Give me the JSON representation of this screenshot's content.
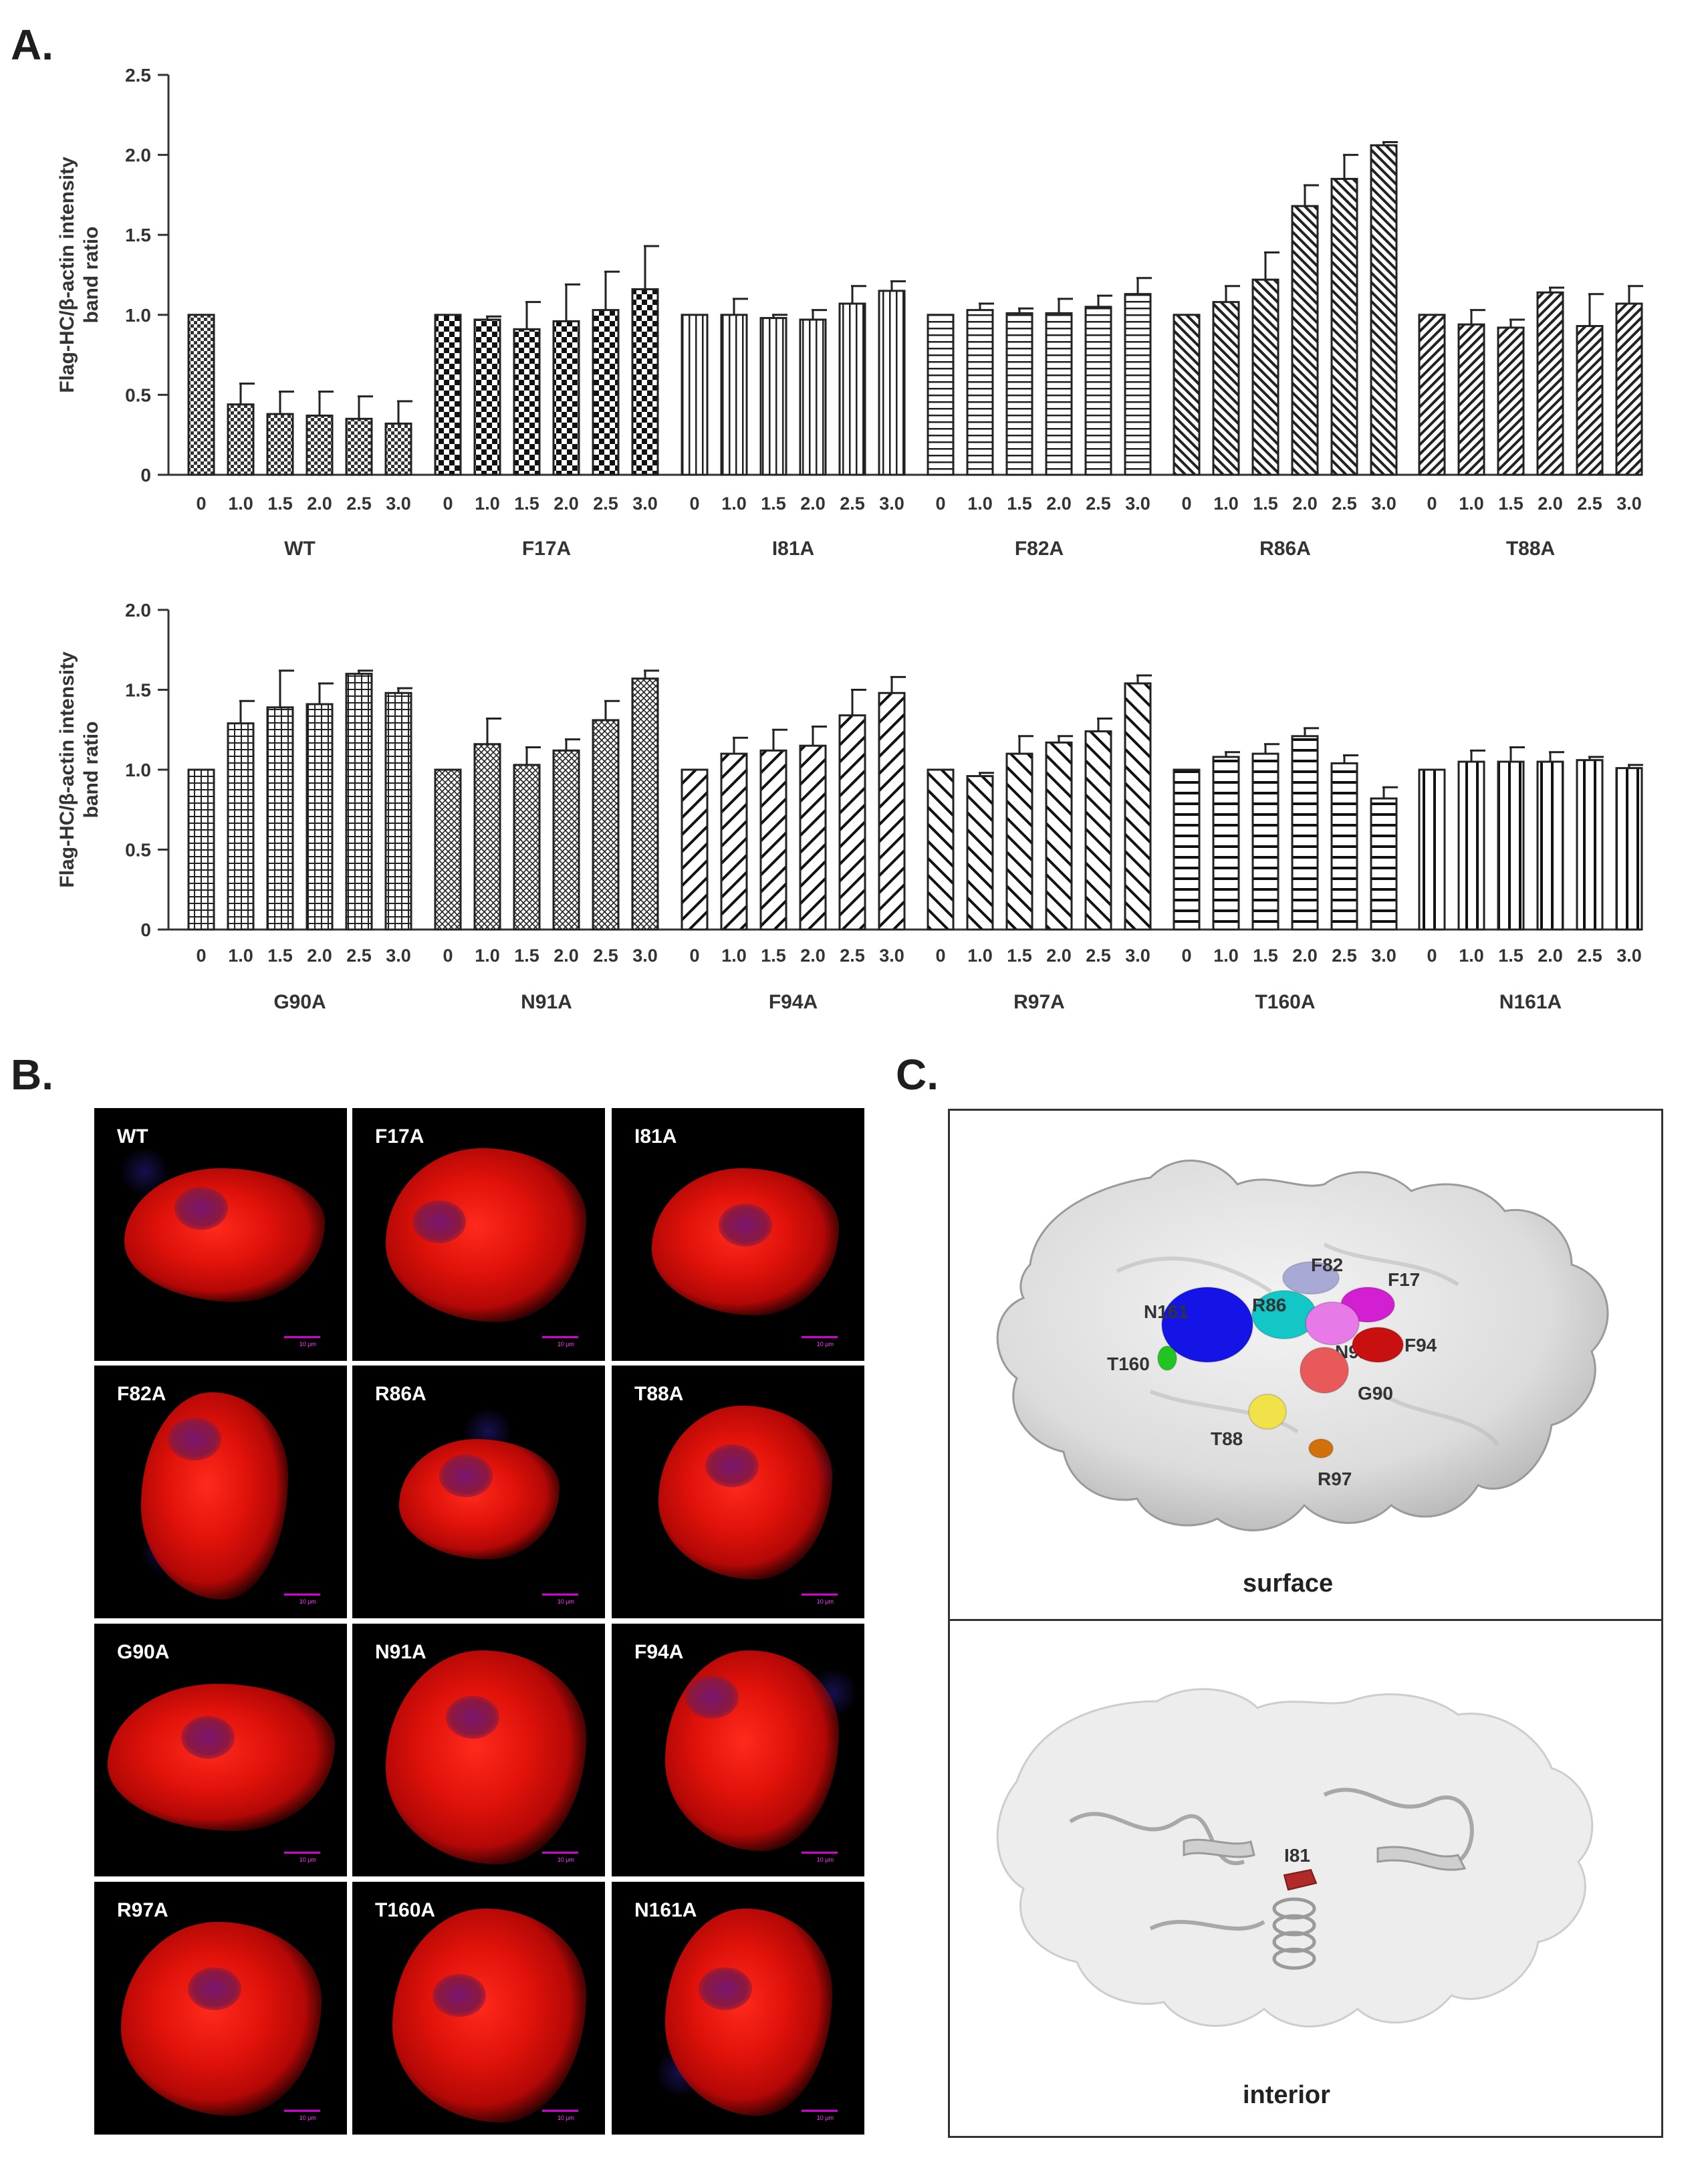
{
  "panels": {
    "a": "A.",
    "b": "B.",
    "c": "C."
  },
  "chart_data": [
    {
      "type": "bar",
      "ylabel": "Flag-HC/β-actin intensity band ratio",
      "ylim": [
        0,
        2.5
      ],
      "yticks": [
        "0",
        "0.5",
        "1.0",
        "1.5",
        "2.0",
        "2.5"
      ],
      "categories": [
        "0",
        "1.0",
        "1.5",
        "2.0",
        "2.5",
        "3.0"
      ],
      "series": [
        {
          "name": "WT",
          "pattern": "check-dense",
          "values": [
            1.0,
            0.44,
            0.38,
            0.37,
            0.35,
            0.32
          ],
          "errors": [
            0,
            0.13,
            0.14,
            0.15,
            0.14,
            0.14
          ]
        },
        {
          "name": "F17A",
          "pattern": "checker",
          "values": [
            1.0,
            0.97,
            0.91,
            0.96,
            1.03,
            1.16
          ],
          "errors": [
            0,
            0.02,
            0.17,
            0.23,
            0.24,
            0.27
          ]
        },
        {
          "name": "I81A",
          "pattern": "vertical",
          "values": [
            1.0,
            1.0,
            0.98,
            0.97,
            1.07,
            1.15
          ],
          "errors": [
            0,
            0.1,
            0.02,
            0.06,
            0.11,
            0.06
          ]
        },
        {
          "name": "F82A",
          "pattern": "horizontal",
          "values": [
            1.0,
            1.03,
            1.01,
            1.01,
            1.05,
            1.13
          ],
          "errors": [
            0,
            0.04,
            0.03,
            0.09,
            0.07,
            0.1
          ]
        },
        {
          "name": "R86A",
          "pattern": "diag-up",
          "values": [
            1.0,
            1.08,
            1.22,
            1.68,
            1.85,
            2.06
          ],
          "errors": [
            0,
            0.1,
            0.17,
            0.13,
            0.15,
            0.02
          ]
        },
        {
          "name": "T88A",
          "pattern": "diag-down",
          "values": [
            1.0,
            0.94,
            0.92,
            1.14,
            0.93,
            1.07
          ],
          "errors": [
            0,
            0.09,
            0.05,
            0.03,
            0.2,
            0.11
          ]
        }
      ]
    },
    {
      "type": "bar",
      "ylabel": "Flag-HC/β-actin intensity band ratio",
      "ylim": [
        0,
        2.0
      ],
      "yticks": [
        "0",
        "0.5",
        "1.0",
        "1.5",
        "2.0"
      ],
      "categories": [
        "0",
        "1.0",
        "1.5",
        "2.0",
        "2.5",
        "3.0"
      ],
      "series": [
        {
          "name": "G90A",
          "pattern": "grid",
          "values": [
            1.0,
            1.29,
            1.39,
            1.41,
            1.6,
            1.48
          ],
          "errors": [
            0,
            0.14,
            0.23,
            0.13,
            0.02,
            0.03
          ]
        },
        {
          "name": "N91A",
          "pattern": "crosshatch",
          "values": [
            1.0,
            1.16,
            1.03,
            1.12,
            1.31,
            1.57
          ],
          "errors": [
            0,
            0.16,
            0.11,
            0.07,
            0.12,
            0.05
          ]
        },
        {
          "name": "F94A",
          "pattern": "diag-down-wide",
          "values": [
            1.0,
            1.1,
            1.12,
            1.15,
            1.34,
            1.48
          ],
          "errors": [
            0,
            0.1,
            0.13,
            0.12,
            0.16,
            0.1
          ]
        },
        {
          "name": "R97A",
          "pattern": "diag-up-wide",
          "values": [
            1.0,
            0.96,
            1.1,
            1.17,
            1.24,
            1.54
          ],
          "errors": [
            0,
            0.02,
            0.11,
            0.04,
            0.08,
            0.05
          ]
        },
        {
          "name": "T160A",
          "pattern": "horizontal-wide",
          "values": [
            1.0,
            1.08,
            1.1,
            1.21,
            1.04,
            0.82
          ],
          "errors": [
            0,
            0.03,
            0.06,
            0.05,
            0.05,
            0.07
          ]
        },
        {
          "name": "N161A",
          "pattern": "vertical-wide",
          "values": [
            1.0,
            1.05,
            1.05,
            1.05,
            1.06,
            1.01
          ],
          "errors": [
            0,
            0.07,
            0.09,
            0.06,
            0.02,
            0.02
          ]
        }
      ]
    }
  ],
  "micrographs": {
    "labels": [
      "WT",
      "F17A",
      "I81A",
      "F82A",
      "R86A",
      "T88A",
      "G90A",
      "N91A",
      "F94A",
      "R97A",
      "T160A",
      "N161A"
    ],
    "scale_text": "10 µm"
  },
  "structure": {
    "surface_caption": "surface",
    "interior_caption": "interior",
    "residues": [
      {
        "label": "F82",
        "color": "#a9a9d6"
      },
      {
        "label": "F17",
        "color": "#d21fd2"
      },
      {
        "label": "R86",
        "color": "#13c7c7"
      },
      {
        "label": "N161",
        "color": "#1414e6"
      },
      {
        "label": "N91",
        "color": "#e77ae7"
      },
      {
        "label": "F94",
        "color": "#c81010"
      },
      {
        "label": "T160",
        "color": "#22c422"
      },
      {
        "label": "G90",
        "color": "#e85a5a"
      },
      {
        "label": "T88",
        "color": "#f2e24a"
      },
      {
        "label": "R97",
        "color": "#d2700c"
      }
    ],
    "interior_residue": {
      "label": "I81",
      "color": "#b02a2a"
    }
  }
}
